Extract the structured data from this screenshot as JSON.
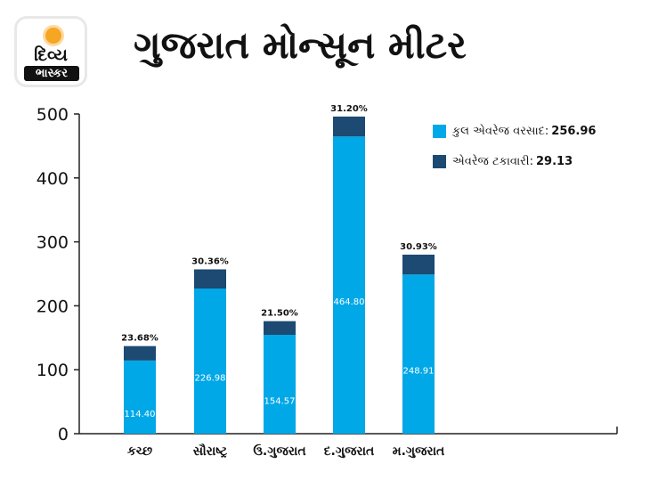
{
  "logo": {
    "line1": "દિવ્ય",
    "line2": "ભાસ્કર"
  },
  "title": "ગુજરાત મોન્સૂન મીટર",
  "legend": {
    "total_label": "કુલ એવરેજ વરસાદ:",
    "total_value": "256.96",
    "pct_label": "એવરેજ ટકાવારી:",
    "pct_value": "29.13"
  },
  "colors": {
    "light": "#00a8e8",
    "dark": "#1c4a73"
  },
  "chart_data": {
    "type": "bar",
    "categories": [
      "કચ્છ",
      "સૌરાષ્ટ્ર",
      "ઉ.ગુજરાત",
      "દ.ગુજરાત",
      "મ.ગુજરાત"
    ],
    "values": [
      114.4,
      226.98,
      154.57,
      464.8,
      248.91
    ],
    "value_labels": [
      "114.40",
      "226.98",
      "154.57",
      "464.80",
      "248.91"
    ],
    "top_values": [
      137,
      257,
      176,
      496,
      280
    ],
    "percent_labels": [
      "23.68%",
      "30.36%",
      "21.50%",
      "31.20%",
      "30.93%"
    ],
    "ylim": [
      0,
      500
    ],
    "yticks": [
      "0",
      "100",
      "200",
      "300",
      "400",
      "500"
    ],
    "grid": false,
    "legend_position": "top-right"
  }
}
